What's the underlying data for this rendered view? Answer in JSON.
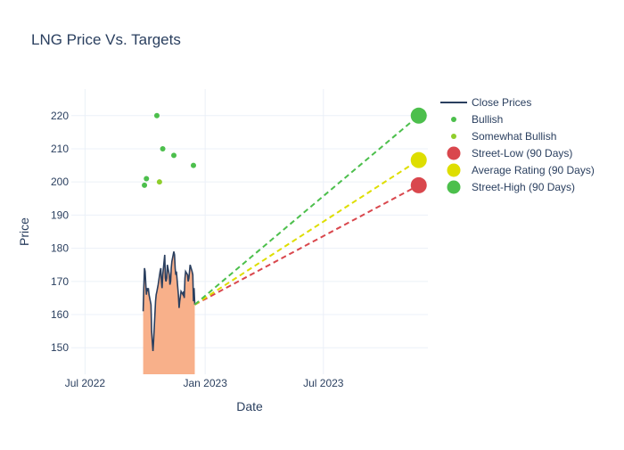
{
  "chart_data": {
    "type": "line",
    "title": "LNG Price Vs. Targets",
    "xlabel": "Date",
    "ylabel": "Price",
    "xlim": [
      "2022-06-10",
      "2023-12-08"
    ],
    "ylim": [
      142,
      228
    ],
    "x_ticks": [
      {
        "date": "2022-07-01",
        "label": "Jul 2022"
      },
      {
        "date": "2023-01-01",
        "label": "Jan 2023"
      },
      {
        "date": "2023-07-01",
        "label": "Jul 2023"
      }
    ],
    "y_ticks": [
      150,
      160,
      170,
      180,
      190,
      200,
      210,
      220
    ],
    "grid": true,
    "legend_position": "right",
    "colors": {
      "close": "#2a3f5f",
      "fill": "#f8b08a",
      "bullish": "#4cbf4c",
      "somewhat_bullish": "#8fce2c",
      "street_low": "#d9474d",
      "average": "#dede00",
      "street_high": "#4cbf4c"
    },
    "close_prices": {
      "name": "Close Prices",
      "points": [
        [
          "2022-09-28",
          161
        ],
        [
          "2022-09-29",
          168
        ],
        [
          "2022-09-30",
          174
        ],
        [
          "2022-10-01",
          173
        ],
        [
          "2022-10-03",
          166
        ],
        [
          "2022-10-04",
          168
        ],
        [
          "2022-10-05",
          167
        ],
        [
          "2022-10-06",
          168
        ],
        [
          "2022-10-07",
          166
        ],
        [
          "2022-10-10",
          163
        ],
        [
          "2022-10-11",
          155
        ],
        [
          "2022-10-12",
          152
        ],
        [
          "2022-10-13",
          149
        ],
        [
          "2022-10-14",
          152
        ],
        [
          "2022-10-17",
          164
        ],
        [
          "2022-10-18",
          166
        ],
        [
          "2022-10-19",
          167
        ],
        [
          "2022-10-21",
          169
        ],
        [
          "2022-10-24",
          173
        ],
        [
          "2022-10-25",
          174
        ],
        [
          "2022-10-26",
          170
        ],
        [
          "2022-10-27",
          168
        ],
        [
          "2022-10-28",
          172
        ],
        [
          "2022-10-31",
          178
        ],
        [
          "2022-11-01",
          171
        ],
        [
          "2022-11-02",
          170
        ],
        [
          "2022-11-03",
          171
        ],
        [
          "2022-11-04",
          175
        ],
        [
          "2022-11-07",
          172
        ],
        [
          "2022-11-08",
          169
        ],
        [
          "2022-11-09",
          170
        ],
        [
          "2022-11-10",
          174
        ],
        [
          "2022-11-11",
          176
        ],
        [
          "2022-11-14",
          179
        ],
        [
          "2022-11-15",
          178
        ],
        [
          "2022-11-16",
          174
        ],
        [
          "2022-11-17",
          172
        ],
        [
          "2022-11-18",
          173
        ],
        [
          "2022-11-21",
          166
        ],
        [
          "2022-11-22",
          162
        ],
        [
          "2022-11-23",
          164
        ],
        [
          "2022-11-25",
          167
        ],
        [
          "2022-11-28",
          166
        ],
        [
          "2022-11-29",
          167
        ],
        [
          "2022-11-30",
          165
        ],
        [
          "2022-12-01",
          171
        ],
        [
          "2022-12-02",
          173
        ],
        [
          "2022-12-05",
          172
        ],
        [
          "2022-12-06",
          170
        ],
        [
          "2022-12-07",
          171
        ],
        [
          "2022-12-08",
          173
        ],
        [
          "2022-12-09",
          175
        ],
        [
          "2022-12-12",
          173
        ],
        [
          "2022-12-13",
          172
        ],
        [
          "2022-12-14",
          164
        ],
        [
          "2022-12-15",
          168
        ],
        [
          "2022-12-16",
          163
        ]
      ]
    },
    "bullish": {
      "name": "Bullish",
      "points": [
        [
          "2022-09-30",
          199
        ],
        [
          "2022-10-03",
          201
        ],
        [
          "2022-10-19",
          220
        ],
        [
          "2022-10-28",
          210
        ],
        [
          "2022-11-14",
          208
        ],
        [
          "2022-12-14",
          205
        ]
      ]
    },
    "somewhat_bullish": {
      "name": "Somewhat Bullish",
      "points": [
        [
          "2022-10-23",
          200
        ]
      ]
    },
    "targets": [
      {
        "name": "Street-Low (90 Days)",
        "start": [
          "2022-12-16",
          163
        ],
        "end": [
          "2023-11-24",
          199
        ],
        "color_key": "street_low"
      },
      {
        "name": "Average Rating (90 Days)",
        "start": [
          "2022-12-16",
          163
        ],
        "end": [
          "2023-11-24",
          206.6
        ],
        "color_key": "average"
      },
      {
        "name": "Street-High (90 Days)",
        "start": [
          "2022-12-16",
          163
        ],
        "end": [
          "2023-11-24",
          220
        ],
        "color_key": "street_high"
      }
    ]
  }
}
